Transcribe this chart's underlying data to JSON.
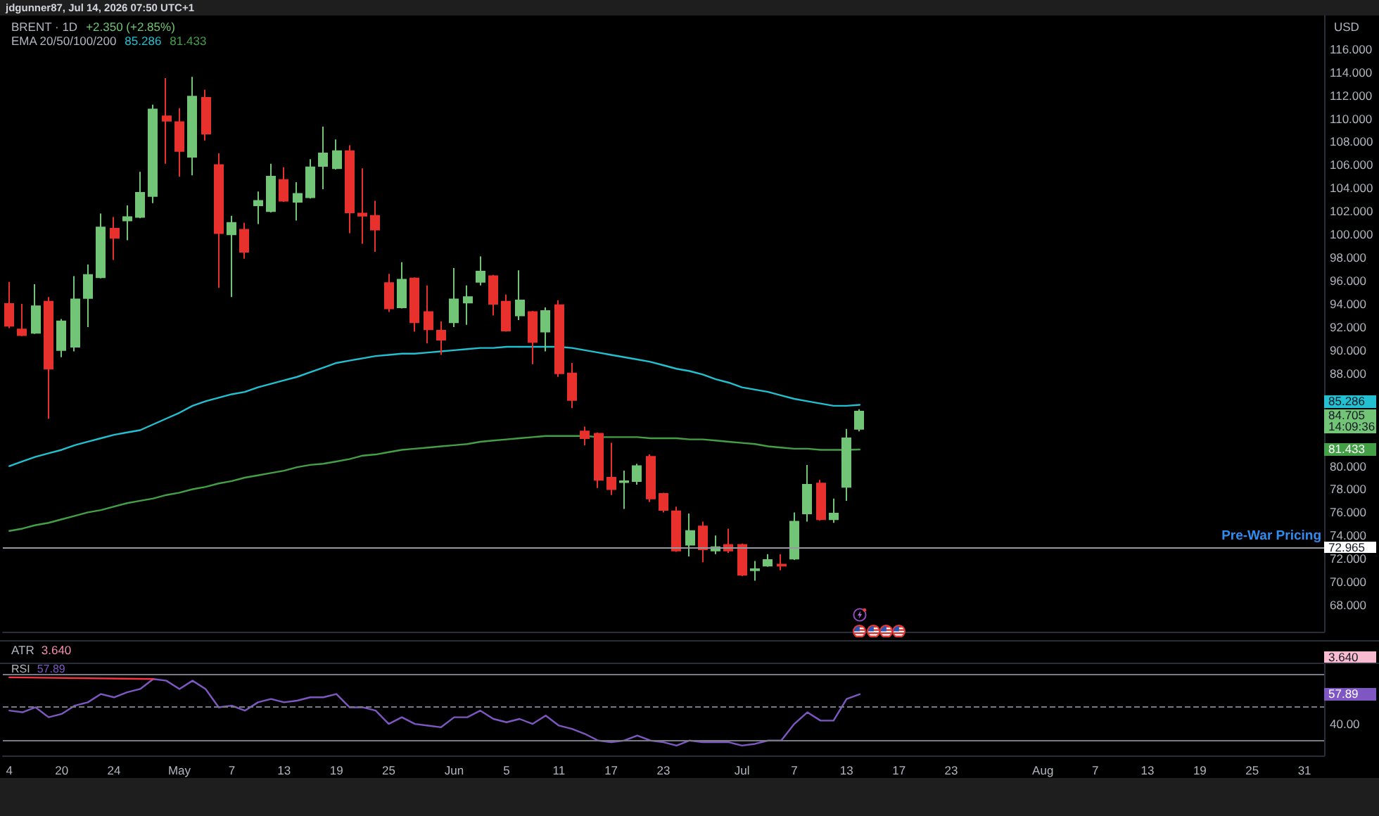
{
  "chart_data": [
    {
      "type": "candlestick",
      "title": "BRENT · 1D",
      "annotations": [
        "jdgunner87, Jul 14, 2026 07:50 UTC+1",
        "+2.350 (+2.85%)",
        "EMA 20/50/100/200",
        "85.286",
        "81.433",
        "USD",
        "14:09:36"
      ],
      "categories": [
        null,
        null,
        null,
        null,
        null,
        null,
        null,
        null,
        null,
        null,
        null,
        null,
        null,
        null,
        null,
        null,
        null,
        null,
        null,
        null,
        null,
        null,
        null,
        null,
        null,
        null,
        null,
        null,
        null,
        null,
        null,
        null,
        null,
        null,
        null,
        null,
        null,
        null,
        null,
        null,
        null,
        null,
        null,
        null,
        null,
        null,
        null,
        null,
        null,
        null,
        null,
        null,
        null,
        null,
        null,
        null,
        null,
        null,
        null,
        null,
        null,
        null,
        null,
        null,
        null,
        null,
        null,
        null,
        null,
        null,
        null,
        null,
        null,
        null,
        null,
        null,
        null,
        null,
        null,
        null,
        null,
        null,
        null,
        null,
        null,
        null,
        null,
        null,
        null,
        null,
        null,
        null,
        null,
        null,
        null,
        null,
        null,
        null,
        null,
        null,
        null
      ],
      "ohlc": [
        [
          94.0,
          95.9,
          91.9,
          92.1
        ],
        [
          91.8,
          94.0,
          91.2,
          91.3
        ],
        [
          91.5,
          95.7,
          91.4,
          93.8
        ],
        [
          94.2,
          94.6,
          84.1,
          88.4
        ],
        [
          90.0,
          92.7,
          89.4,
          92.5
        ],
        [
          90.3,
          96.4,
          89.9,
          94.4
        ],
        [
          94.5,
          97.4,
          92.0,
          96.5
        ],
        [
          96.3,
          101.8,
          96.2,
          100.6
        ],
        [
          100.5,
          101.5,
          97.8,
          99.7
        ],
        [
          101.2,
          102.5,
          99.5,
          101.5
        ],
        [
          101.5,
          105.4,
          101.4,
          103.6
        ],
        [
          103.3,
          111.2,
          102.7,
          110.8
        ],
        [
          110.2,
          113.5,
          106.1,
          109.8
        ],
        [
          109.7,
          110.9,
          105.0,
          107.2
        ],
        [
          106.7,
          113.6,
          105.1,
          111.9
        ],
        [
          111.8,
          112.5,
          108.1,
          108.7
        ],
        [
          106.0,
          107.0,
          95.4,
          100.1
        ],
        [
          100.0,
          101.6,
          94.6,
          101.0
        ],
        [
          100.4,
          101.0,
          97.9,
          98.5
        ],
        [
          102.5,
          103.7,
          100.9,
          102.9
        ],
        [
          102.0,
          106.1,
          101.9,
          105.0
        ],
        [
          104.7,
          105.8,
          102.8,
          102.9
        ],
        [
          102.8,
          104.5,
          101.2,
          103.5
        ],
        [
          103.2,
          106.5,
          103.1,
          105.8
        ],
        [
          105.9,
          109.3,
          103.9,
          107.0
        ],
        [
          105.7,
          108.2,
          105.6,
          107.2
        ],
        [
          107.2,
          107.7,
          100.1,
          101.9
        ],
        [
          101.8,
          105.7,
          99.2,
          101.6
        ],
        [
          101.6,
          102.9,
          98.5,
          100.4
        ],
        [
          95.8,
          96.6,
          93.3,
          93.6
        ],
        [
          93.7,
          97.6,
          93.6,
          96.1
        ],
        [
          96.2,
          96.3,
          91.6,
          92.4
        ],
        [
          93.3,
          95.6,
          90.6,
          91.8
        ],
        [
          91.7,
          92.5,
          89.6,
          90.9
        ],
        [
          92.4,
          97.1,
          92.0,
          94.4
        ],
        [
          94.1,
          95.6,
          92.2,
          94.6
        ],
        [
          95.9,
          98.1,
          95.6,
          96.8
        ],
        [
          96.4,
          96.5,
          93.0,
          94.0
        ],
        [
          94.2,
          94.8,
          91.6,
          91.7
        ],
        [
          93.0,
          96.9,
          92.6,
          94.3
        ],
        [
          93.3,
          93.4,
          88.8,
          90.7
        ],
        [
          91.6,
          93.7,
          89.9,
          93.4
        ],
        [
          93.9,
          94.3,
          87.7,
          88.0
        ],
        [
          88.0,
          88.9,
          85.0,
          85.7
        ],
        [
          83.0,
          83.4,
          81.8,
          82.4
        ],
        [
          82.8,
          82.9,
          78.1,
          78.8
        ],
        [
          79.0,
          82.0,
          77.5,
          78.0
        ],
        [
          78.6,
          79.6,
          76.3,
          78.7
        ],
        [
          78.7,
          80.2,
          78.4,
          80.0
        ],
        [
          80.8,
          81.0,
          76.9,
          77.2
        ],
        [
          77.6,
          77.7,
          76.0,
          76.2
        ],
        [
          76.1,
          76.5,
          72.6,
          72.7
        ],
        [
          73.2,
          75.9,
          72.2,
          74.4
        ],
        [
          74.8,
          75.2,
          71.7,
          72.8
        ],
        [
          72.7,
          74.0,
          72.4,
          73.0
        ],
        [
          73.2,
          74.6,
          72.5,
          72.7
        ],
        [
          73.2,
          73.3,
          70.5,
          70.6
        ],
        [
          71.0,
          71.8,
          70.1,
          71.1
        ],
        [
          71.4,
          72.4,
          71.3,
          71.9
        ],
        [
          71.5,
          72.4,
          71.0,
          71.4
        ],
        [
          72.0,
          76.0,
          71.9,
          75.2
        ],
        [
          75.9,
          80.1,
          75.2,
          78.4
        ],
        [
          78.5,
          78.8,
          75.3,
          75.4
        ],
        [
          75.4,
          77.2,
          75.1,
          75.9
        ],
        [
          78.2,
          83.2,
          77.0,
          82.4
        ],
        [
          83.2,
          84.9,
          83.0,
          84.705
        ],
        null,
        null,
        null,
        null,
        null,
        null,
        null,
        null,
        null,
        null,
        null,
        null,
        null,
        null,
        null,
        null,
        null,
        null,
        null,
        null,
        null,
        null,
        null,
        null,
        null,
        null,
        null,
        null,
        null,
        null,
        null,
        null,
        null,
        null,
        null
      ],
      "colors": [
        "#e8302c",
        "#e8302c",
        "#72c476",
        "#e8302c",
        "#72c476",
        "#72c476",
        "#72c476",
        "#72c476",
        "#e8302c",
        "#72c476",
        "#72c476",
        "#72c476",
        "#e8302c",
        "#e8302c",
        "#72c476",
        "#e8302c",
        "#e8302c",
        "#72c476",
        "#e8302c",
        "#72c476",
        "#72c476",
        "#e8302c",
        "#72c476",
        "#72c476",
        "#72c476",
        "#72c476",
        "#e8302c",
        "#e8302c",
        "#e8302c",
        "#e8302c",
        "#72c476",
        "#e8302c",
        "#e8302c",
        "#e8302c",
        "#72c476",
        "#72c476",
        "#72c476",
        "#e8302c",
        "#e8302c",
        "#72c476",
        "#e8302c",
        "#72c476",
        "#e8302c",
        "#e8302c",
        "#e8302c",
        "#e8302c",
        "#e8302c",
        "#72c476",
        "#72c476",
        "#e8302c",
        "#e8302c",
        "#e8302c",
        "#72c476",
        "#e8302c",
        "#72c476",
        "#e8302c",
        "#e8302c",
        "#72c476",
        "#72c476",
        "#e8302c",
        "#72c476",
        "#72c476",
        "#e8302c",
        "#72c476",
        "#72c476",
        "#72c476",
        null,
        null,
        null,
        null,
        null,
        null,
        null,
        null,
        null,
        null,
        null,
        null,
        null,
        null,
        null,
        null,
        null,
        null,
        null,
        null,
        null,
        null,
        null,
        null,
        null,
        null,
        null,
        null,
        null,
        null,
        null,
        null,
        null,
        null,
        null
      ],
      "series": [
        {
          "type": "line",
          "color": "#22c0d0",
          "values": [
            80.0,
            80.4,
            80.8,
            81.1,
            81.4,
            81.8,
            82.1,
            82.4,
            82.7,
            82.9,
            83.1,
            83.6,
            84.1,
            84.6,
            85.2,
            85.6,
            85.9,
            86.2,
            86.4,
            86.8,
            87.1,
            87.4,
            87.7,
            88.1,
            88.5,
            88.9,
            89.1,
            89.3,
            89.5,
            89.6,
            89.7,
            89.7,
            89.8,
            89.9,
            90.0,
            90.1,
            90.2,
            90.2,
            90.3,
            90.3,
            90.3,
            90.3,
            90.3,
            90.2,
            90.0,
            89.8,
            89.6,
            89.4,
            89.2,
            89.0,
            88.7,
            88.4,
            88.2,
            87.9,
            87.5,
            87.2,
            86.8,
            86.6,
            86.4,
            86.1,
            85.8,
            85.6,
            85.4,
            85.2,
            85.2,
            85.286,
            null,
            null,
            null,
            null,
            null,
            null,
            null,
            null,
            null,
            null,
            null,
            null,
            null,
            null,
            null,
            null,
            null,
            null,
            null,
            null,
            null,
            null,
            null,
            null,
            null,
            null,
            null,
            null,
            null,
            null,
            null,
            null,
            null,
            null,
            null
          ]
        },
        {
          "type": "line",
          "color": "#43a047",
          "values": [
            74.4,
            74.6,
            74.9,
            75.1,
            75.4,
            75.7,
            76.0,
            76.2,
            76.5,
            76.8,
            77.0,
            77.2,
            77.5,
            77.7,
            78.0,
            78.2,
            78.5,
            78.7,
            79.0,
            79.2,
            79.4,
            79.6,
            79.9,
            80.1,
            80.2,
            80.4,
            80.6,
            80.9,
            81.0,
            81.2,
            81.4,
            81.5,
            81.6,
            81.7,
            81.8,
            81.9,
            82.1,
            82.2,
            82.3,
            82.4,
            82.5,
            82.6,
            82.6,
            82.6,
            82.6,
            82.5,
            82.5,
            82.5,
            82.5,
            82.4,
            82.4,
            82.4,
            82.3,
            82.3,
            82.2,
            82.1,
            82.0,
            81.9,
            81.7,
            81.6,
            81.5,
            81.5,
            81.4,
            81.4,
            81.4,
            81.433,
            null,
            null,
            null,
            null,
            null,
            null,
            null,
            null,
            null,
            null,
            null,
            null,
            null,
            null,
            null,
            null,
            null,
            null,
            null,
            null,
            null,
            null,
            null,
            null,
            null,
            null,
            null,
            null,
            null,
            null,
            null,
            null,
            null,
            null,
            null
          ]
        }
      ],
      "ylim": [
        65.7,
        118.9
      ],
      "yticks": [
        {
          "value": 68,
          "label": "68.000"
        },
        {
          "value": 70,
          "label": "70.000"
        },
        {
          "value": 72,
          "label": "72.000"
        },
        72.965,
        {
          "value": 74,
          "label": "74.000"
        },
        {
          "value": 76,
          "label": "76.000"
        },
        {
          "value": 78,
          "label": "78.000"
        },
        {
          "value": 80,
          "label": "80.000"
        },
        81.433,
        84.705,
        85.286,
        {
          "value": 88,
          "label": "88.000"
        },
        {
          "value": 90,
          "label": "90.000"
        },
        {
          "value": 92,
          "label": "92.000"
        },
        {
          "value": 94,
          "label": "94.000"
        },
        {
          "value": 96,
          "label": "96.000"
        },
        {
          "value": 98,
          "label": "98.000"
        },
        {
          "value": 100,
          "label": "100.000"
        },
        {
          "value": 102,
          "label": "102.000"
        },
        {
          "value": 104,
          "label": "104.000"
        },
        {
          "value": 106,
          "label": "106.000"
        },
        {
          "value": 108,
          "label": "108.000"
        },
        {
          "value": 110,
          "label": "110.000"
        },
        {
          "value": 112,
          "label": "112.000"
        },
        {
          "value": 114,
          "label": "114.000"
        },
        {
          "value": 116,
          "label": "116.000"
        }
      ],
      "ref_lines": [
        {
          "axis": "y",
          "value": 72.965,
          "label": "Pre-War Pricing",
          "color": "#9598a1"
        }
      ]
    },
    {
      "type": "other",
      "title": "ATR",
      "annotations": [
        "3.640"
      ]
    },
    {
      "type": "line",
      "title": "RSI",
      "annotations": [
        "57.89"
      ],
      "categories": [
        "4",
        null,
        null,
        null,
        "20",
        null,
        null,
        null,
        "24",
        null,
        null,
        null,
        null,
        "May",
        null,
        null,
        null,
        "7",
        null,
        null,
        null,
        "13",
        null,
        null,
        null,
        "19",
        null,
        null,
        null,
        "25",
        null,
        null,
        null,
        null,
        "Jun",
        null,
        null,
        null,
        "5",
        null,
        null,
        null,
        "11",
        null,
        null,
        null,
        "17",
        null,
        null,
        null,
        "23",
        null,
        null,
        null,
        null,
        null,
        "Jul",
        null,
        null,
        null,
        "7",
        null,
        null,
        null,
        "13",
        null,
        null,
        null,
        "17",
        null,
        null,
        null,
        "23",
        null,
        null,
        null,
        null,
        null,
        null,
        "Aug",
        null,
        null,
        null,
        "7",
        null,
        null,
        null,
        "13",
        null,
        null,
        null,
        "19",
        null,
        null,
        null,
        "25",
        null,
        null,
        null,
        "31",
        null
      ],
      "series": [
        {
          "color": "#7e57c2",
          "values": [
            48,
            47,
            50,
            44,
            46,
            51,
            53,
            58,
            56,
            59,
            61,
            67,
            66,
            61,
            66,
            61,
            50,
            51,
            48,
            53,
            55,
            53,
            54,
            56,
            56,
            58,
            50,
            50,
            48,
            40,
            44,
            40,
            39,
            38,
            44,
            44,
            48,
            43,
            41,
            43,
            40,
            45,
            39,
            37,
            34,
            30,
            29,
            30,
            33,
            30,
            29,
            27,
            30,
            29,
            29,
            29,
            27,
            28,
            30,
            30,
            40,
            47,
            42,
            42,
            55,
            57.89,
            null,
            null,
            null,
            null,
            null,
            null,
            null,
            null,
            null,
            null,
            null,
            null,
            null,
            null,
            null,
            null,
            null,
            null,
            null,
            null,
            null,
            null,
            null,
            null,
            null,
            null,
            null,
            null,
            null,
            null,
            null,
            null,
            null,
            null,
            null
          ]
        },
        {
          "color": "#f23645",
          "values": [
            68,
            null,
            null,
            null,
            null,
            null,
            null,
            null,
            null,
            null,
            null,
            67,
            null,
            null,
            null,
            null,
            null,
            null,
            null,
            null,
            null,
            null,
            null,
            null,
            null,
            null,
            null,
            null,
            null,
            null,
            null,
            null,
            null,
            null,
            null,
            null,
            null,
            null,
            null,
            null,
            null,
            null,
            null,
            null,
            null,
            null,
            null,
            null,
            null,
            null,
            null,
            null,
            null,
            null,
            null,
            null,
            null,
            null,
            null,
            null,
            null,
            null,
            null,
            null,
            null,
            null,
            null,
            null,
            null,
            null,
            null,
            null,
            null,
            null,
            null,
            null,
            null,
            null,
            null,
            null,
            null,
            null,
            null,
            null,
            null,
            null,
            null,
            null,
            null,
            null,
            null,
            null,
            null,
            null,
            null,
            null,
            null,
            null,
            null,
            null,
            null
          ]
        }
      ],
      "ylim": [
        21,
        76
      ],
      "yticks": [
        {
          "value": 40,
          "label": "40.00"
        },
        57.89
      ],
      "ref_lines": [
        {
          "axis": "y",
          "value": 70,
          "color": "#787b86"
        },
        {
          "axis": "y",
          "value": 50,
          "color": "#787b86",
          "line_style": "dashed"
        },
        {
          "axis": "y",
          "value": 30,
          "color": "#787b86"
        }
      ]
    }
  ]
}
